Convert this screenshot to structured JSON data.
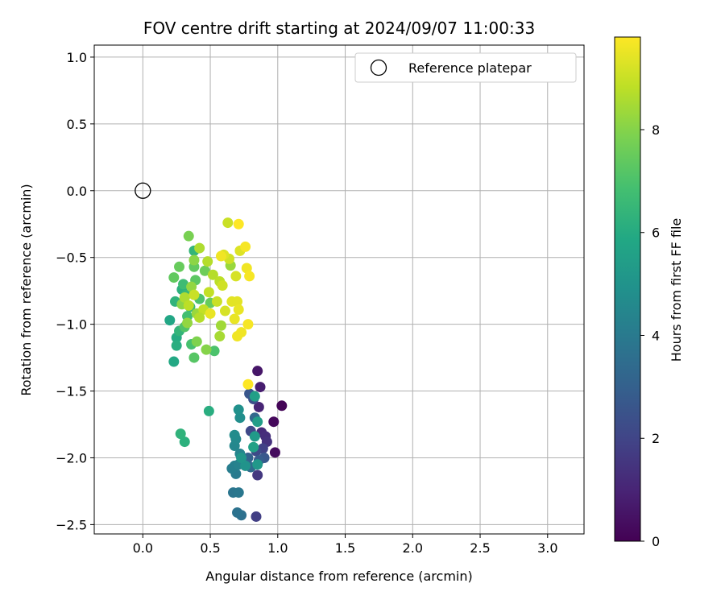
{
  "chart_data": {
    "type": "scatter",
    "title": "FOV centre drift starting at 2024/09/07 11:00:33",
    "xlabel": "Angular distance from reference (arcmin)",
    "ylabel": "Rotation from reference (arcmin)",
    "xlim": [
      -0.36,
      3.27
    ],
    "ylim": [
      -2.57,
      1.09
    ],
    "xticks": [
      "0.0",
      "0.5",
      "1.0",
      "1.5",
      "2.0",
      "2.5",
      "3.0"
    ],
    "xtick_values": [
      0,
      0.5,
      1.0,
      1.5,
      2.0,
      2.5,
      3.0
    ],
    "yticks": [
      "1.0",
      "0.5",
      "0.0",
      "−0.5",
      "−1.0",
      "−1.5",
      "−2.0",
      "−2.5"
    ],
    "ytick_values": [
      1.0,
      0.5,
      0.0,
      -0.5,
      -1.0,
      -1.5,
      -2.0,
      -2.5
    ],
    "grid": true,
    "legend": {
      "position": "top-right",
      "entries": [
        {
          "label": "Reference platepar",
          "marker": "hollow-circle"
        }
      ]
    },
    "reference_point": {
      "x": 0.0,
      "y": 0.0
    },
    "colorbar": {
      "label": "Hours from first FF file",
      "colormap": "viridis",
      "range": [
        0,
        9.8
      ],
      "ticks": [
        "0",
        "2",
        "4",
        "6",
        "8"
      ],
      "tick_values": [
        0,
        2,
        4,
        6,
        8
      ]
    },
    "points": [
      {
        "x": 1.03,
        "y": -1.61,
        "c": 0.1
      },
      {
        "x": 0.97,
        "y": -1.73,
        "c": 0.2
      },
      {
        "x": 0.98,
        "y": -1.96,
        "c": 0.3
      },
      {
        "x": 0.85,
        "y": -1.35,
        "c": 0.6
      },
      {
        "x": 0.87,
        "y": -1.47,
        "c": 0.8
      },
      {
        "x": 0.86,
        "y": -1.62,
        "c": 1.0
      },
      {
        "x": 0.88,
        "y": -1.81,
        "c": 1.2
      },
      {
        "x": 0.91,
        "y": -1.84,
        "c": 1.3
      },
      {
        "x": 0.92,
        "y": -1.88,
        "c": 1.4
      },
      {
        "x": 0.85,
        "y": -2.13,
        "c": 1.6
      },
      {
        "x": 0.84,
        "y": -2.44,
        "c": 1.8
      },
      {
        "x": 0.89,
        "y": -1.93,
        "c": 1.9
      },
      {
        "x": 0.8,
        "y": -1.8,
        "c": 2.1
      },
      {
        "x": 0.84,
        "y": -1.95,
        "c": 2.2
      },
      {
        "x": 0.82,
        "y": -1.56,
        "c": 2.4
      },
      {
        "x": 0.79,
        "y": -1.52,
        "c": 2.6
      },
      {
        "x": 0.9,
        "y": -2.0,
        "c": 2.7
      },
      {
        "x": 0.86,
        "y": -2.02,
        "c": 2.9
      },
      {
        "x": 0.78,
        "y": -2.0,
        "c": 3.1
      },
      {
        "x": 0.83,
        "y": -1.7,
        "c": 3.3
      },
      {
        "x": 0.8,
        "y": -2.07,
        "c": 3.4
      },
      {
        "x": 0.73,
        "y": -2.43,
        "c": 3.6
      },
      {
        "x": 0.7,
        "y": -2.41,
        "c": 3.7
      },
      {
        "x": 0.67,
        "y": -2.26,
        "c": 3.8
      },
      {
        "x": 0.71,
        "y": -2.26,
        "c": 3.9
      },
      {
        "x": 0.69,
        "y": -2.12,
        "c": 4.0
      },
      {
        "x": 0.66,
        "y": -2.08,
        "c": 4.1
      },
      {
        "x": 0.68,
        "y": -2.06,
        "c": 4.2
      },
      {
        "x": 0.71,
        "y": -2.05,
        "c": 4.3
      },
      {
        "x": 0.72,
        "y": -1.97,
        "c": 4.4
      },
      {
        "x": 0.68,
        "y": -1.91,
        "c": 4.5
      },
      {
        "x": 0.69,
        "y": -1.86,
        "c": 4.6
      },
      {
        "x": 0.68,
        "y": -1.83,
        "c": 4.7
      },
      {
        "x": 0.72,
        "y": -1.7,
        "c": 4.8
      },
      {
        "x": 0.71,
        "y": -1.64,
        "c": 4.9
      },
      {
        "x": 0.76,
        "y": -2.06,
        "c": 5.0
      },
      {
        "x": 0.73,
        "y": -2.0,
        "c": 5.1
      },
      {
        "x": 0.85,
        "y": -2.05,
        "c": 5.2
      },
      {
        "x": 0.83,
        "y": -1.84,
        "c": 5.3
      },
      {
        "x": 0.85,
        "y": -1.73,
        "c": 5.4
      },
      {
        "x": 0.83,
        "y": -1.54,
        "c": 5.5
      },
      {
        "x": 0.82,
        "y": -1.92,
        "c": 5.6
      },
      {
        "x": 0.49,
        "y": -1.65,
        "c": 6.1
      },
      {
        "x": 0.31,
        "y": -1.88,
        "c": 6.2
      },
      {
        "x": 0.28,
        "y": -1.82,
        "c": 6.3
      },
      {
        "x": 0.23,
        "y": -1.28,
        "c": 5.9
      },
      {
        "x": 0.2,
        "y": -0.97,
        "c": 5.8
      },
      {
        "x": 0.25,
        "y": -1.1,
        "c": 6.0
      },
      {
        "x": 0.25,
        "y": -1.16,
        "c": 6.1
      },
      {
        "x": 0.27,
        "y": -1.05,
        "c": 6.4
      },
      {
        "x": 0.24,
        "y": -0.83,
        "c": 6.3
      },
      {
        "x": 0.29,
        "y": -0.74,
        "c": 6.2
      },
      {
        "x": 0.32,
        "y": -0.78,
        "c": 6.5
      },
      {
        "x": 0.35,
        "y": -0.87,
        "c": 6.6
      },
      {
        "x": 0.38,
        "y": -0.45,
        "c": 6.4
      },
      {
        "x": 0.3,
        "y": -0.7,
        "c": 6.7
      },
      {
        "x": 0.33,
        "y": -0.94,
        "c": 6.8
      },
      {
        "x": 0.36,
        "y": -1.15,
        "c": 6.9
      },
      {
        "x": 0.53,
        "y": -1.2,
        "c": 7.0
      },
      {
        "x": 0.31,
        "y": -1.02,
        "c": 7.1
      },
      {
        "x": 0.38,
        "y": -1.25,
        "c": 7.2
      },
      {
        "x": 0.39,
        "y": -0.67,
        "c": 7.3
      },
      {
        "x": 0.42,
        "y": -0.81,
        "c": 7.0
      },
      {
        "x": 0.38,
        "y": -0.57,
        "c": 7.4
      },
      {
        "x": 0.27,
        "y": -0.57,
        "c": 7.5
      },
      {
        "x": 0.23,
        "y": -0.65,
        "c": 7.4
      },
      {
        "x": 0.46,
        "y": -0.6,
        "c": 7.6
      },
      {
        "x": 0.5,
        "y": -0.84,
        "c": 7.5
      },
      {
        "x": 0.34,
        "y": -0.34,
        "c": 7.8
      },
      {
        "x": 0.4,
        "y": -1.13,
        "c": 7.9
      },
      {
        "x": 0.47,
        "y": -1.19,
        "c": 8.0
      },
      {
        "x": 0.29,
        "y": -0.85,
        "c": 8.1
      },
      {
        "x": 0.33,
        "y": -0.99,
        "c": 8.2
      },
      {
        "x": 0.36,
        "y": -0.72,
        "c": 8.2
      },
      {
        "x": 0.4,
        "y": -0.92,
        "c": 8.3
      },
      {
        "x": 0.38,
        "y": -0.52,
        "c": 8.1
      },
      {
        "x": 0.65,
        "y": -0.56,
        "c": 8.3
      },
      {
        "x": 0.58,
        "y": -1.01,
        "c": 8.4
      },
      {
        "x": 0.57,
        "y": -1.09,
        "c": 8.5
      },
      {
        "x": 0.42,
        "y": -0.43,
        "c": 8.6
      },
      {
        "x": 0.48,
        "y": -0.53,
        "c": 8.7
      },
      {
        "x": 0.52,
        "y": -0.63,
        "c": 8.7
      },
      {
        "x": 0.57,
        "y": -0.68,
        "c": 8.8
      },
      {
        "x": 0.49,
        "y": -0.76,
        "c": 8.9
      },
      {
        "x": 0.45,
        "y": -0.89,
        "c": 8.9
      },
      {
        "x": 0.31,
        "y": -0.8,
        "c": 8.6
      },
      {
        "x": 0.34,
        "y": -0.86,
        "c": 8.8
      },
      {
        "x": 0.38,
        "y": -0.78,
        "c": 9.0
      },
      {
        "x": 0.42,
        "y": -0.95,
        "c": 8.7
      },
      {
        "x": 0.63,
        "y": -0.24,
        "c": 9.0
      },
      {
        "x": 0.64,
        "y": -0.51,
        "c": 9.1
      },
      {
        "x": 0.69,
        "y": -0.64,
        "c": 9.2
      },
      {
        "x": 0.72,
        "y": -0.45,
        "c": 9.3
      },
      {
        "x": 0.6,
        "y": -0.48,
        "c": 9.3
      },
      {
        "x": 0.59,
        "y": -0.71,
        "c": 9.1
      },
      {
        "x": 0.55,
        "y": -0.83,
        "c": 9.0
      },
      {
        "x": 0.61,
        "y": -0.9,
        "c": 9.2
      },
      {
        "x": 0.66,
        "y": -0.83,
        "c": 9.4
      },
      {
        "x": 0.7,
        "y": -0.83,
        "c": 9.4
      },
      {
        "x": 0.71,
        "y": -0.89,
        "c": 9.5
      },
      {
        "x": 0.68,
        "y": -0.96,
        "c": 9.5
      },
      {
        "x": 0.73,
        "y": -1.06,
        "c": 9.6
      },
      {
        "x": 0.7,
        "y": -1.09,
        "c": 9.6
      },
      {
        "x": 0.78,
        "y": -1.0,
        "c": 9.7
      },
      {
        "x": 0.77,
        "y": -0.58,
        "c": 9.6
      },
      {
        "x": 0.79,
        "y": -0.64,
        "c": 9.7
      },
      {
        "x": 0.76,
        "y": -0.42,
        "c": 9.7
      },
      {
        "x": 0.71,
        "y": -0.25,
        "c": 9.8
      },
      {
        "x": 0.78,
        "y": -1.45,
        "c": 9.8
      },
      {
        "x": 0.5,
        "y": -0.92,
        "c": 9.5
      },
      {
        "x": 0.58,
        "y": -0.49,
        "c": 9.6
      }
    ]
  }
}
